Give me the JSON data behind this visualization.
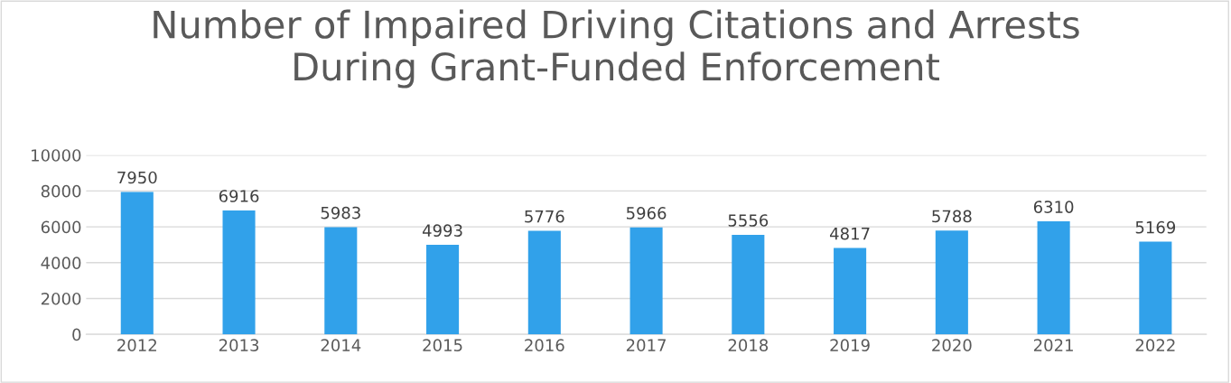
{
  "chart_data": {
    "type": "bar",
    "title": "Number of Impaired Driving Citations and Arrests\nDuring Grant-Funded Enforcement",
    "categories": [
      "2012",
      "2013",
      "2014",
      "2015",
      "2016",
      "2017",
      "2018",
      "2019",
      "2020",
      "2021",
      "2022"
    ],
    "values": [
      7950,
      6916,
      5983,
      4993,
      5776,
      5966,
      5556,
      4817,
      5788,
      6310,
      5169
    ],
    "color": "#31a1ea",
    "ylim": [
      0,
      10000
    ],
    "yticks": [
      0,
      2000,
      4000,
      6000,
      8000,
      10000
    ],
    "grid": "y",
    "data_labels": true,
    "legend": false
  }
}
